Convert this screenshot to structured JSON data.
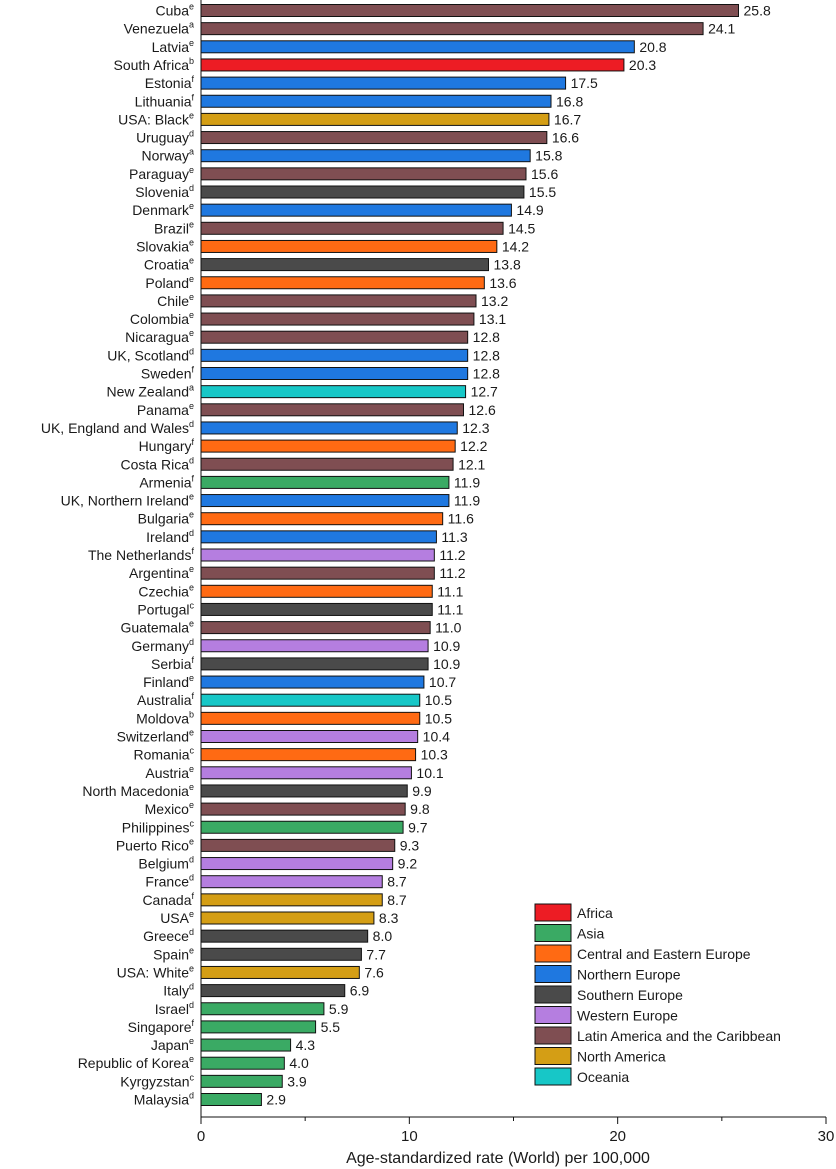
{
  "chart_data": {
    "type": "bar",
    "orientation": "horizontal",
    "xlabel": "Age-standardized rate (World) per 100,000",
    "xlim": [
      0,
      30
    ],
    "xticks": [
      0,
      10,
      20,
      30
    ],
    "grid": false,
    "legend_position": "bottom-right",
    "legend": [
      {
        "key": "africa",
        "label": "Africa",
        "color": "#ed1c24"
      },
      {
        "key": "asia",
        "label": "Asia",
        "color": "#3aaa64"
      },
      {
        "key": "cee",
        "label": "Central and Eastern Europe",
        "color": "#ff6a13"
      },
      {
        "key": "northern",
        "label": "Northern Europe",
        "color": "#1f78e0"
      },
      {
        "key": "southern",
        "label": "Southern Europe",
        "color": "#4a4a4a"
      },
      {
        "key": "western",
        "label": "Western Europe",
        "color": "#b57ee0"
      },
      {
        "key": "latam",
        "label": "Latin America and the Caribbean",
        "color": "#7f4e52"
      },
      {
        "key": "namerica",
        "label": "North America",
        "color": "#d49e15"
      },
      {
        "key": "oceania",
        "label": "Oceania",
        "color": "#17c7c7"
      }
    ],
    "bars": [
      {
        "label": "Cuba",
        "sup": "e",
        "value": 25.8,
        "value_text": "25.8",
        "region": "latam"
      },
      {
        "label": "Venezuela",
        "sup": "a",
        "value": 24.1,
        "value_text": "24.1",
        "region": "latam"
      },
      {
        "label": "Latvia",
        "sup": "e",
        "value": 20.8,
        "value_text": "20.8",
        "region": "northern"
      },
      {
        "label": "South Africa",
        "sup": "b",
        "value": 20.3,
        "value_text": "20.3",
        "region": "africa"
      },
      {
        "label": "Estonia",
        "sup": "f",
        "value": 17.5,
        "value_text": "17.5",
        "region": "northern"
      },
      {
        "label": "Lithuania",
        "sup": "f",
        "value": 16.8,
        "value_text": "16.8",
        "region": "northern"
      },
      {
        "label": "USA: Black",
        "sup": "e",
        "value": 16.7,
        "value_text": "16.7",
        "region": "namerica"
      },
      {
        "label": "Uruguay",
        "sup": "d",
        "value": 16.6,
        "value_text": "16.6",
        "region": "latam"
      },
      {
        "label": "Norway",
        "sup": "a",
        "value": 15.8,
        "value_text": "15.8",
        "region": "northern"
      },
      {
        "label": "Paraguay",
        "sup": "e",
        "value": 15.6,
        "value_text": "15.6",
        "region": "latam"
      },
      {
        "label": "Slovenia",
        "sup": "d",
        "value": 15.5,
        "value_text": "15.5",
        "region": "southern"
      },
      {
        "label": "Denmark",
        "sup": "e",
        "value": 14.9,
        "value_text": "14.9",
        "region": "northern"
      },
      {
        "label": "Brazil",
        "sup": "e",
        "value": 14.5,
        "value_text": "14.5",
        "region": "latam"
      },
      {
        "label": "Slovakia",
        "sup": "e",
        "value": 14.2,
        "value_text": "14.2",
        "region": "cee"
      },
      {
        "label": "Croatia",
        "sup": "e",
        "value": 13.8,
        "value_text": "13.8",
        "region": "southern"
      },
      {
        "label": "Poland",
        "sup": "e",
        "value": 13.6,
        "value_text": "13.6",
        "region": "cee"
      },
      {
        "label": "Chile",
        "sup": "e",
        "value": 13.2,
        "value_text": "13.2",
        "region": "latam"
      },
      {
        "label": "Colombia",
        "sup": "e",
        "value": 13.1,
        "value_text": "13.1",
        "region": "latam"
      },
      {
        "label": "Nicaragua",
        "sup": "e",
        "value": 12.8,
        "value_text": "12.8",
        "region": "latam"
      },
      {
        "label": "UK, Scotland",
        "sup": "d",
        "value": 12.8,
        "value_text": "12.8",
        "region": "northern"
      },
      {
        "label": "Sweden",
        "sup": "f",
        "value": 12.8,
        "value_text": "12.8",
        "region": "northern"
      },
      {
        "label": "New Zealand",
        "sup": "a",
        "value": 12.7,
        "value_text": "12.7",
        "region": "oceania"
      },
      {
        "label": "Panama",
        "sup": "e",
        "value": 12.6,
        "value_text": "12.6",
        "region": "latam"
      },
      {
        "label": "UK, England and Wales",
        "sup": "d",
        "value": 12.3,
        "value_text": "12.3",
        "region": "northern"
      },
      {
        "label": "Hungary",
        "sup": "f",
        "value": 12.2,
        "value_text": "12.2",
        "region": "cee"
      },
      {
        "label": "Costa Rica",
        "sup": "d",
        "value": 12.1,
        "value_text": "12.1",
        "region": "latam"
      },
      {
        "label": "Armenia",
        "sup": "f",
        "value": 11.9,
        "value_text": "11.9",
        "region": "asia"
      },
      {
        "label": "UK, Northern Ireland",
        "sup": "e",
        "value": 11.9,
        "value_text": "11.9",
        "region": "northern"
      },
      {
        "label": "Bulgaria",
        "sup": "e",
        "value": 11.6,
        "value_text": "11.6",
        "region": "cee"
      },
      {
        "label": "Ireland",
        "sup": "d",
        "value": 11.3,
        "value_text": "11.3",
        "region": "northern"
      },
      {
        "label": "The Netherlands",
        "sup": "f",
        "value": 11.2,
        "value_text": "11.2",
        "region": "western"
      },
      {
        "label": "Argentina",
        "sup": "e",
        "value": 11.2,
        "value_text": "11.2",
        "region": "latam"
      },
      {
        "label": "Czechia",
        "sup": "e",
        "value": 11.1,
        "value_text": "11.1",
        "region": "cee"
      },
      {
        "label": "Portugal",
        "sup": "c",
        "value": 11.1,
        "value_text": "11.1",
        "region": "southern"
      },
      {
        "label": "Guatemala",
        "sup": "e",
        "value": 11.0,
        "value_text": "11.0",
        "region": "latam"
      },
      {
        "label": "Germany",
        "sup": "d",
        "value": 10.9,
        "value_text": "10.9",
        "region": "western"
      },
      {
        "label": "Serbia",
        "sup": "f",
        "value": 10.9,
        "value_text": "10.9",
        "region": "southern"
      },
      {
        "label": "Finland",
        "sup": "e",
        "value": 10.7,
        "value_text": "10.7",
        "region": "northern"
      },
      {
        "label": "Australia",
        "sup": "f",
        "value": 10.5,
        "value_text": "10.5",
        "region": "oceania"
      },
      {
        "label": "Moldova",
        "sup": "b",
        "value": 10.5,
        "value_text": "10.5",
        "region": "cee"
      },
      {
        "label": "Switzerland",
        "sup": "e",
        "value": 10.4,
        "value_text": "10.4",
        "region": "western"
      },
      {
        "label": "Romania",
        "sup": "c",
        "value": 10.3,
        "value_text": "10.3",
        "region": "cee"
      },
      {
        "label": "Austria",
        "sup": "e",
        "value": 10.1,
        "value_text": "10.1",
        "region": "western"
      },
      {
        "label": "North Macedonia",
        "sup": "e",
        "value": 9.9,
        "value_text": "9.9",
        "region": "southern"
      },
      {
        "label": "Mexico",
        "sup": "e",
        "value": 9.8,
        "value_text": "9.8",
        "region": "latam"
      },
      {
        "label": "Philippines",
        "sup": "c",
        "value": 9.7,
        "value_text": "9.7",
        "region": "asia"
      },
      {
        "label": "Puerto Rico",
        "sup": "e",
        "value": 9.3,
        "value_text": "9.3",
        "region": "latam"
      },
      {
        "label": "Belgium",
        "sup": "d",
        "value": 9.2,
        "value_text": "9.2",
        "region": "western"
      },
      {
        "label": "France",
        "sup": "d",
        "value": 8.7,
        "value_text": "8.7",
        "region": "western"
      },
      {
        "label": "Canada",
        "sup": "f",
        "value": 8.7,
        "value_text": "8.7",
        "region": "namerica"
      },
      {
        "label": "USA",
        "sup": "e",
        "value": 8.3,
        "value_text": "8.3",
        "region": "namerica"
      },
      {
        "label": "Greece",
        "sup": "d",
        "value": 8.0,
        "value_text": "8.0",
        "region": "southern"
      },
      {
        "label": "Spain",
        "sup": "e",
        "value": 7.7,
        "value_text": "7.7",
        "region": "southern"
      },
      {
        "label": "USA: White",
        "sup": "e",
        "value": 7.6,
        "value_text": "7.6",
        "region": "namerica"
      },
      {
        "label": "Italy",
        "sup": "d",
        "value": 6.9,
        "value_text": "6.9",
        "region": "southern"
      },
      {
        "label": "Israel",
        "sup": "d",
        "value": 5.9,
        "value_text": "5.9",
        "region": "asia"
      },
      {
        "label": "Singapore",
        "sup": "f",
        "value": 5.5,
        "value_text": "5.5",
        "region": "asia"
      },
      {
        "label": "Japan",
        "sup": "e",
        "value": 4.3,
        "value_text": "4.3",
        "region": "asia"
      },
      {
        "label": "Republic of Korea",
        "sup": "e",
        "value": 4.0,
        "value_text": "4.0",
        "region": "asia"
      },
      {
        "label": "Kyrgyzstan",
        "sup": "c",
        "value": 3.9,
        "value_text": "3.9",
        "region": "asia"
      },
      {
        "label": "Malaysia",
        "sup": "d",
        "value": 2.9,
        "value_text": "2.9",
        "region": "asia"
      }
    ]
  }
}
